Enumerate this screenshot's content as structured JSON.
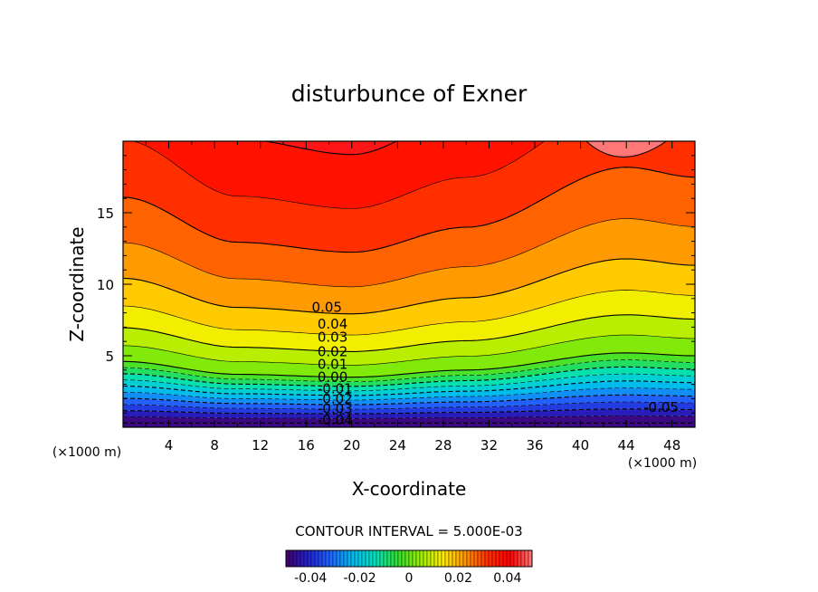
{
  "chart_data": {
    "type": "contour",
    "title": "disturbunce of Exner",
    "xlabel": "X-coordinate",
    "ylabel": "Z-coordinate",
    "x_unit": "(×1000 m)",
    "y_unit": "(×1000 m)",
    "xlim": [
      0,
      50
    ],
    "ylim": [
      0,
      20
    ],
    "xticks": [
      4,
      8,
      12,
      16,
      20,
      24,
      28,
      32,
      36,
      40,
      44,
      48
    ],
    "yticks": [
      5,
      10,
      15
    ],
    "contour_interval_text": "CONTOUR INTERVAL = 5.000E-03",
    "contour_interval": 0.005,
    "level_range": [
      -0.05,
      0.05
    ],
    "positive_style": "solid",
    "negative_style": "dashed",
    "zero_contour_z_at_x": {
      "x": [
        0,
        10,
        20,
        30,
        44,
        50
      ],
      "z": [
        4.6,
        3.7,
        3.5,
        4.0,
        5.2,
        5.0
      ]
    },
    "top_cap": {
      "x_range": [
        40.5,
        47.5
      ],
      "z_lowest": 18.9,
      "z_lowest_at_x": 43.5
    },
    "contour_labels": [
      {
        "text": "0.05",
        "x": 16.5,
        "z": 8.4
      },
      {
        "text": "0.04",
        "x": 17.0,
        "z": 7.2
      },
      {
        "text": "0.03",
        "x": 17.0,
        "z": 6.3
      },
      {
        "text": "0.02",
        "x": 17.0,
        "z": 5.3
      },
      {
        "text": "0.01",
        "x": 17.0,
        "z": 4.4
      },
      {
        "text": "0.00",
        "x": 17.0,
        "z": 3.5
      },
      {
        "text": "-0.01",
        "x": 17.0,
        "z": 2.7
      },
      {
        "text": "-0.02",
        "x": 17.0,
        "z": 2.0
      },
      {
        "text": "-0.03",
        "x": 17.0,
        "z": 1.3
      },
      {
        "text": "-0.04",
        "x": 17.0,
        "z": 0.5
      },
      {
        "text": "-0.05",
        "x": 45.5,
        "z": 1.4
      }
    ],
    "colorbar": {
      "range": [
        -0.05,
        0.05
      ],
      "ticks": [
        -0.04,
        -0.02,
        0,
        0.02,
        0.04
      ],
      "tick_labels": [
        "-0.04",
        "-0.02",
        "0",
        "0.02",
        "0.04"
      ],
      "colors": [
        "#440066",
        "#2222cc",
        "#2266ff",
        "#00bbee",
        "#00e0c0",
        "#33dd33",
        "#99ee00",
        "#ffee00",
        "#ff9900",
        "#ff3300",
        "#ff0000",
        "#ff7777"
      ]
    }
  }
}
